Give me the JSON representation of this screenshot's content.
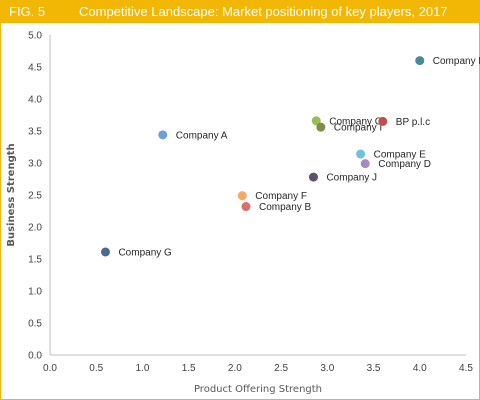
{
  "figure": {
    "label": "FIG. 5",
    "title": "Competitive Landscape: Market positioning of key players, 2017"
  },
  "chart_data": {
    "type": "scatter",
    "xlabel": "Product Offering Strength",
    "ylabel": "Business Strength",
    "xlim": [
      0,
      4.5
    ],
    "ylim": [
      0,
      5
    ],
    "x_ticks": [
      "0.0",
      "0.5",
      "1.0",
      "1.5",
      "2.0",
      "2.5",
      "3.0",
      "3.5",
      "4.0",
      "4.5"
    ],
    "y_ticks": [
      "0.0",
      "0.5",
      "1.0",
      "1.5",
      "2.0",
      "2.5",
      "3.0",
      "3.5",
      "4.0",
      "4.5",
      "5.0"
    ],
    "grid": false,
    "points": [
      {
        "label": "Company K",
        "x": 4.0,
        "y": 4.6,
        "color": "#4a8a96"
      },
      {
        "label": "Company A",
        "x": 1.22,
        "y": 3.44,
        "color": "#6f9fd8"
      },
      {
        "label": "Company C",
        "x": 2.88,
        "y": 3.66,
        "color": "#9bbb59"
      },
      {
        "label": "Company I",
        "x": 2.93,
        "y": 3.56,
        "color": "#7f8c4a"
      },
      {
        "label": "BP p.l.c",
        "x": 3.6,
        "y": 3.65,
        "color": "#c0504d"
      },
      {
        "label": "Company E",
        "x": 3.36,
        "y": 3.14,
        "color": "#6fc2dd"
      },
      {
        "label": "Company D",
        "x": 3.41,
        "y": 2.99,
        "color": "#a58bbd"
      },
      {
        "label": "Company J",
        "x": 2.85,
        "y": 2.78,
        "color": "#5e4f6b"
      },
      {
        "label": "Company F",
        "x": 2.08,
        "y": 2.49,
        "color": "#f5a865"
      },
      {
        "label": "Company B",
        "x": 2.12,
        "y": 2.32,
        "color": "#d9706e"
      },
      {
        "label": "Company G",
        "x": 0.6,
        "y": 1.61,
        "color": "#4d6a8a"
      }
    ]
  }
}
